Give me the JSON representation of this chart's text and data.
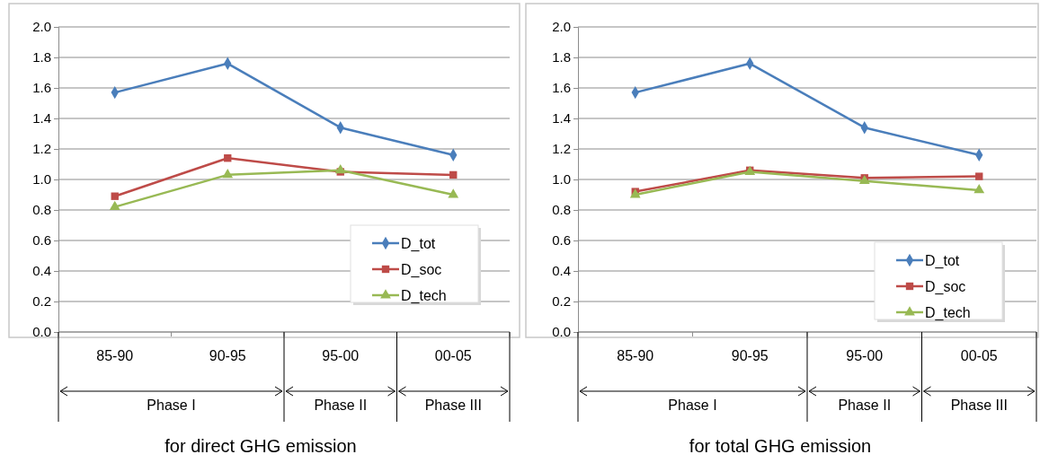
{
  "chart_data": [
    {
      "type": "line",
      "title": "for direct GHG emission",
      "categories": [
        "85-90",
        "90-95",
        "95-00",
        "00-05"
      ],
      "ylim": [
        0,
        2
      ],
      "yticks": [
        {
          "value": 0,
          "label": "0.0"
        },
        {
          "value": 0.2,
          "label": "0.2"
        },
        {
          "value": 0.4,
          "label": "0.4"
        },
        {
          "value": 0.6,
          "label": "0.6"
        },
        {
          "value": 0.8,
          "label": "0.8"
        },
        {
          "value": 1,
          "label": "1.0"
        },
        {
          "value": 1.2,
          "label": "1.2"
        },
        {
          "value": 1.4,
          "label": "1.4"
        },
        {
          "value": 1.6,
          "label": "1.6"
        },
        {
          "value": 1.8,
          "label": "1.8"
        },
        {
          "value": 2,
          "label": "2.0"
        }
      ],
      "grid": "y",
      "legend": "bottom right",
      "annotations": [
        "Phase I",
        "Phase II",
        "Phase III"
      ],
      "series": [
        {
          "name": "D_tot",
          "color": "#4a7ebb",
          "marker": "diamond",
          "values": [
            1.57,
            1.76,
            1.34,
            1.16
          ]
        },
        {
          "name": "D_soc",
          "color": "#be4b48",
          "marker": "square",
          "values": [
            0.89,
            1.14,
            1.05,
            1.03
          ]
        },
        {
          "name": "D_tech",
          "color": "#98b954",
          "marker": "triangle",
          "values": [
            0.82,
            1.03,
            1.06,
            0.9
          ]
        }
      ]
    },
    {
      "type": "line",
      "title": "for total GHG emission",
      "categories": [
        "85-90",
        "90-95",
        "95-00",
        "00-05"
      ],
      "ylim": [
        0,
        2
      ],
      "yticks": [
        {
          "value": 0,
          "label": "0.0"
        },
        {
          "value": 0.2,
          "label": "0.2"
        },
        {
          "value": 0.4,
          "label": "0.4"
        },
        {
          "value": 0.6,
          "label": "0.6"
        },
        {
          "value": 0.8,
          "label": "0.8"
        },
        {
          "value": 1,
          "label": "1.0"
        },
        {
          "value": 1.2,
          "label": "1.2"
        },
        {
          "value": 1.4,
          "label": "1.4"
        },
        {
          "value": 1.6,
          "label": "1.6"
        },
        {
          "value": 1.8,
          "label": "1.8"
        },
        {
          "value": 2,
          "label": "2.0"
        }
      ],
      "grid": "y",
      "legend": "bottom right",
      "annotations": [
        "Phase I",
        "Phase II",
        "Phase III"
      ],
      "series": [
        {
          "name": "D_tot",
          "color": "#4a7ebb",
          "marker": "diamond",
          "values": [
            1.57,
            1.76,
            1.34,
            1.16
          ]
        },
        {
          "name": "D_soc",
          "color": "#be4b48",
          "marker": "square",
          "values": [
            0.92,
            1.06,
            1.01,
            1.02
          ]
        },
        {
          "name": "D_tech",
          "color": "#98b954",
          "marker": "triangle",
          "values": [
            0.9,
            1.05,
            0.99,
            0.93
          ]
        }
      ]
    }
  ]
}
